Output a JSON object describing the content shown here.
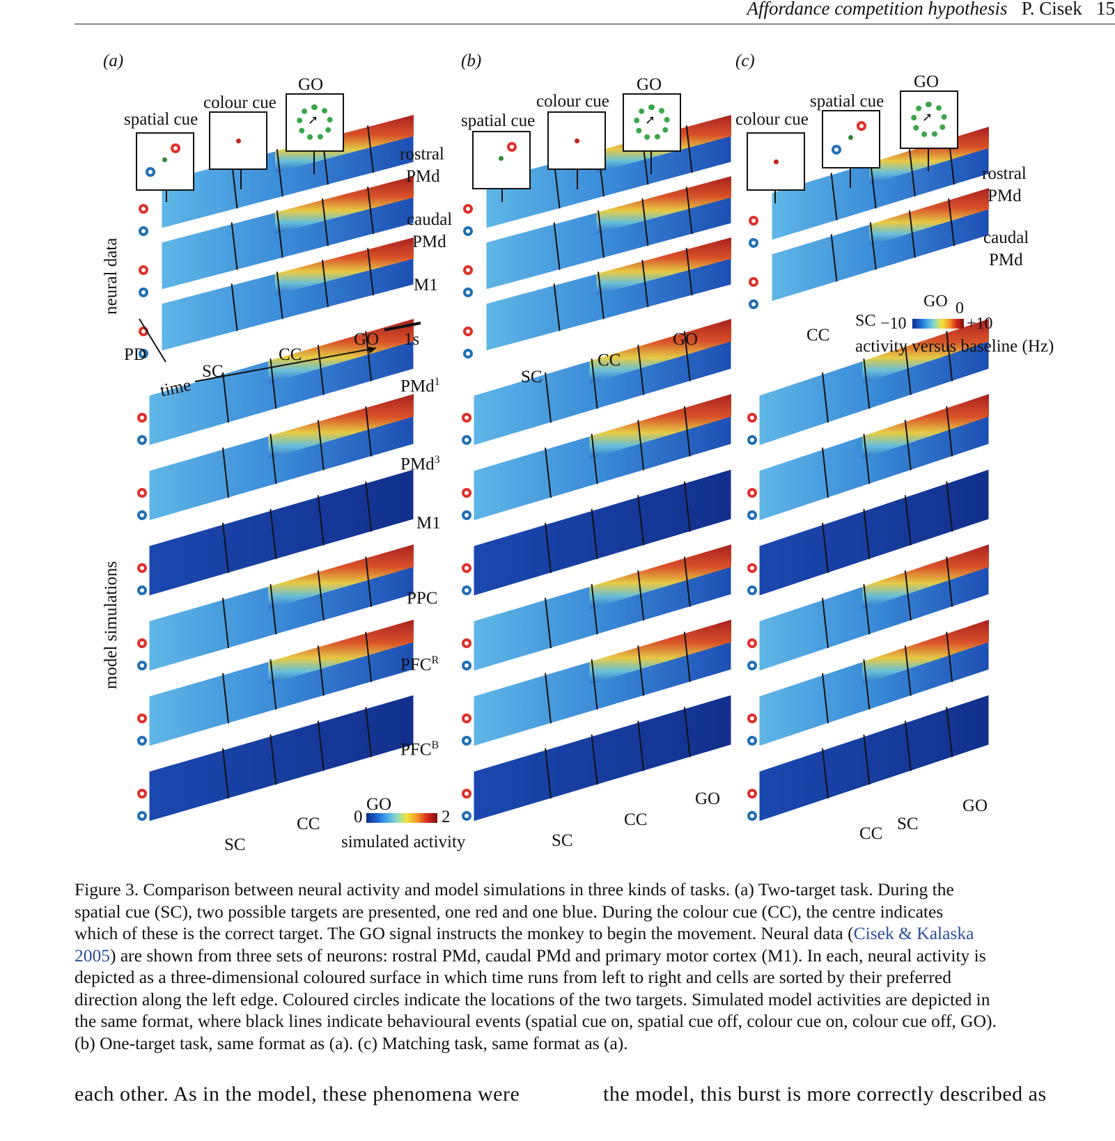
{
  "header": {
    "running_title": "Affordance competition hypothesis",
    "author": "P. Cisek",
    "page": "15"
  },
  "panels": {
    "a": {
      "label": "(a)",
      "cues": [
        "spatial cue",
        "colour cue",
        "GO"
      ],
      "neural": [
        "rostral PMd",
        "caudal PMd",
        "M1"
      ],
      "time_labels": {
        "sc": "SC",
        "cc": "CC",
        "go": "GO",
        "scale": "1s",
        "pd": "PD",
        "time": "time"
      },
      "model_sim_labels": {
        "sc": "SC",
        "cc": "CC",
        "go": "GO"
      }
    },
    "b": {
      "label": "(b)",
      "cues": [
        "spatial cue",
        "colour cue",
        "GO"
      ],
      "time_labels": {
        "sc": "SC",
        "cc": "CC",
        "go": "GO"
      },
      "model_sim_labels": {
        "sc": "SC",
        "cc": "CC",
        "go": "GO"
      }
    },
    "c": {
      "label": "(c)",
      "cues": [
        "colour cue",
        "spatial cue",
        "GO"
      ],
      "neural": [
        "rostral PMd",
        "caudal PMd"
      ],
      "time_labels": {
        "sc": "SC",
        "cc": "CC",
        "go": "GO"
      },
      "model_sim_labels": {
        "sc": "SC",
        "cc": "CC",
        "go": "GO"
      }
    }
  },
  "row_labels": {
    "neural": "neural data",
    "model": "model simulations"
  },
  "rostral": "rostral",
  "caudal": "caudal",
  "pmd": "PMd",
  "m1": "M1",
  "model_areas": {
    "pmd1": "PMd",
    "pmd1_sup": "1",
    "pmd3": "PMd",
    "pmd3_sup": "3",
    "m1": "M1",
    "ppc": "PPC",
    "pfcr": "PFC",
    "pfcr_sup": "R",
    "pfcb": "PFC",
    "pfcb_sup": "B"
  },
  "colorbar_neural": {
    "min": "−10",
    "zero": "0",
    "max": "+10",
    "label": "activity versus baseline (Hz)",
    "go": "GO",
    "sc": "SC"
  },
  "colorbar_model": {
    "min": "0",
    "max": "2",
    "label": "simulated activity",
    "go": "GO"
  },
  "caption": {
    "l1": "Figure 3. Comparison between neural activity and model simulations in three kinds of tasks. (a) Two-target task. During the",
    "l2": "spatial cue (SC), two possible targets are presented, one red and one blue. During the colour cue (CC), the centre indicates",
    "l3a": "which of these is the correct target. The GO signal instructs the monkey to begin the movement. Neural data (",
    "l3link": "Cisek & Kalaska",
    "l4link": "2005",
    "l4b": ") are shown from three sets of neurons: rostral PMd, caudal PMd and primary motor cortex (M1). In each, neural activity is",
    "l5": "depicted as a three-dimensional coloured surface in which time runs from left to right and cells are sorted by their preferred",
    "l6": "direction along the left edge. Coloured circles indicate the locations of the two targets. Simulated model activities are depicted in",
    "l7": "the same format, where black lines indicate behavioural events (spatial cue on, spatial cue off, colour cue on, colour cue off, GO).",
    "l8": "(b) One-target task, same format as (a). (c) Matching task, same format as (a)."
  },
  "body_text": {
    "left": "each other. As in the model, these phenomena were",
    "right": "the model, this burst is more correctly described as"
  }
}
